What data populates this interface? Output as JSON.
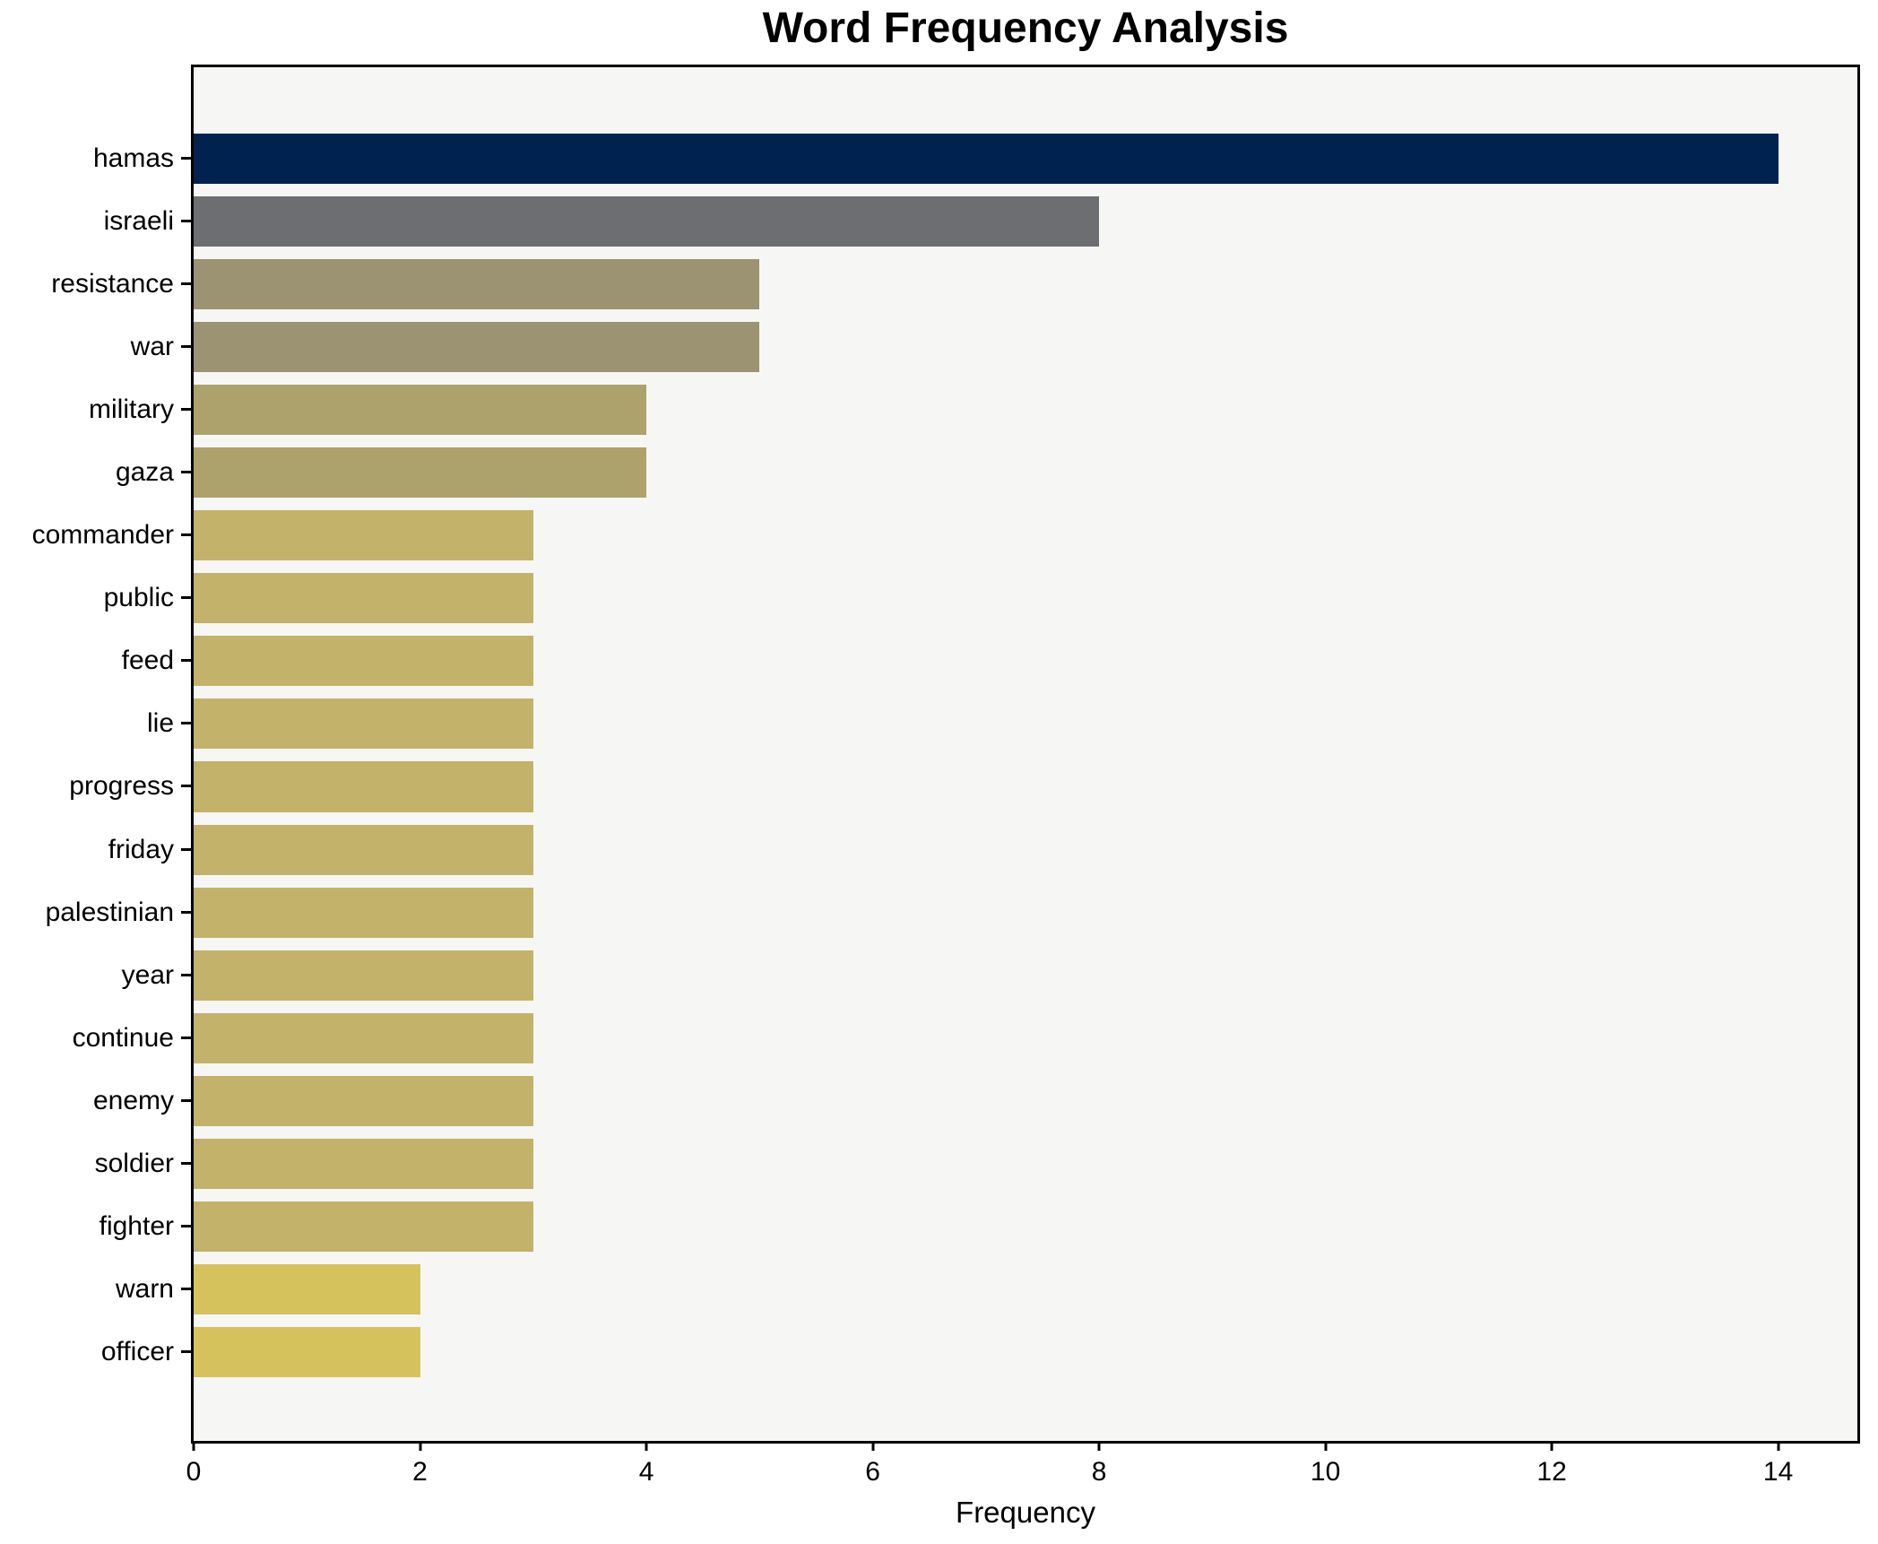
{
  "title": "Word Frequency Analysis",
  "chart_data": {
    "type": "bar",
    "orientation": "horizontal",
    "title": "Word Frequency Analysis",
    "xlabel": "Frequency",
    "ylabel": "",
    "categories": [
      "hamas",
      "israeli",
      "resistance",
      "war",
      "military",
      "gaza",
      "commander",
      "public",
      "feed",
      "lie",
      "progress",
      "friday",
      "palestinian",
      "year",
      "continue",
      "enemy",
      "soldier",
      "fighter",
      "warn",
      "officer"
    ],
    "values": [
      14,
      8,
      5,
      5,
      4,
      4,
      3,
      3,
      3,
      3,
      3,
      3,
      3,
      3,
      3,
      3,
      3,
      3,
      2,
      2
    ],
    "bar_colors": [
      "#00224e",
      "#6c6e72",
      "#9b9371",
      "#9b9371",
      "#ada16c",
      "#ada16c",
      "#c3b269",
      "#c3b269",
      "#c3b269",
      "#c3b269",
      "#c3b269",
      "#c3b269",
      "#c3b269",
      "#c3b269",
      "#c3b269",
      "#c3b269",
      "#c3b269",
      "#c3b269",
      "#d6c25c",
      "#d6c25c"
    ],
    "xticks": [
      0,
      2,
      4,
      6,
      8,
      10,
      12,
      14
    ],
    "xlim": [
      0,
      14.7
    ],
    "grid": false,
    "legend": null,
    "plot_bg": "#f6f6f5",
    "fig_bg": "#ffffff",
    "spine_color": "#000000"
  }
}
